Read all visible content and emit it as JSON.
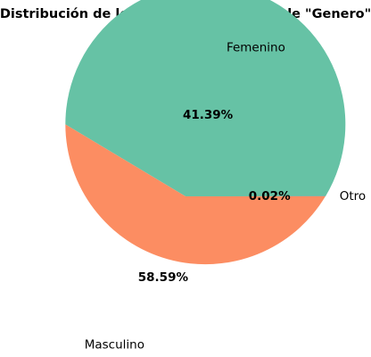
{
  "chart_data": {
    "type": "pie",
    "title": "Distribución de los datos para la variable \"Genero\"",
    "slices": [
      {
        "label": "Masculino",
        "value": 58.59,
        "pct_label": "58.59%",
        "color": "#66c2a5"
      },
      {
        "label": "Femenino",
        "value": 41.39,
        "pct_label": "41.39%",
        "color": "#fc8d62"
      },
      {
        "label": "Otro",
        "value": 0.02,
        "pct_label": "0.02%",
        "color": "#8da0cb"
      }
    ],
    "start_angle_deg": 0,
    "direction": "counterclockwise",
    "legend": "none"
  }
}
